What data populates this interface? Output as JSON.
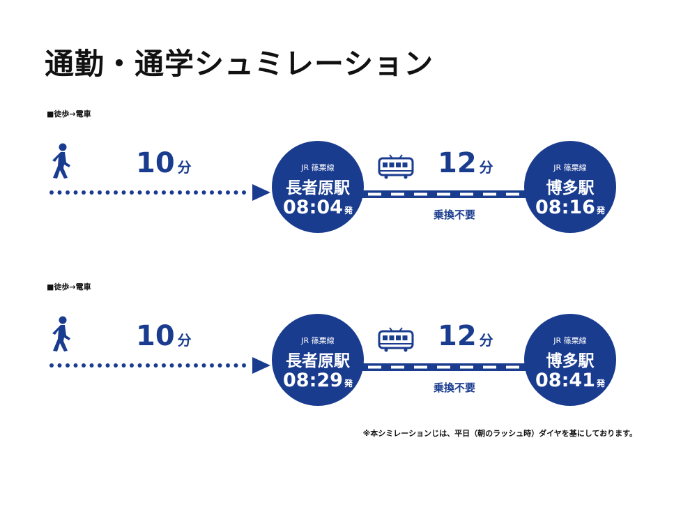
{
  "title": "通勤・通学シュミレーション",
  "colors": {
    "brand": "#1a3c8f",
    "text": "#111111",
    "background": "#ffffff"
  },
  "routes": [
    {
      "label": "■徒歩→電車",
      "walk": {
        "icon": "walking-person-icon",
        "minutes": "10",
        "unit": "分"
      },
      "from": {
        "line": "JR 篠栗線",
        "name": "長者原駅",
        "time": "08:04",
        "suffix": "発"
      },
      "ride": {
        "icon": "train-icon",
        "minutes": "12",
        "unit": "分",
        "note": "乗換不要"
      },
      "to": {
        "line": "JR 篠栗線",
        "name": "博多駅",
        "time": "08:16",
        "suffix": "発"
      }
    },
    {
      "label": "■徒歩→電車",
      "walk": {
        "icon": "walking-person-icon",
        "minutes": "10",
        "unit": "分"
      },
      "from": {
        "line": "JR 篠栗線",
        "name": "長者原駅",
        "time": "08:29",
        "suffix": "発"
      },
      "ride": {
        "icon": "train-icon",
        "minutes": "12",
        "unit": "分",
        "note": "乗換不要"
      },
      "to": {
        "line": "JR 篠栗線",
        "name": "博多駅",
        "time": "08:41",
        "suffix": "発"
      }
    }
  ],
  "footnote": "※本シミレーションじは、平日（朝のラッシュ時）ダイヤを基にしております。"
}
